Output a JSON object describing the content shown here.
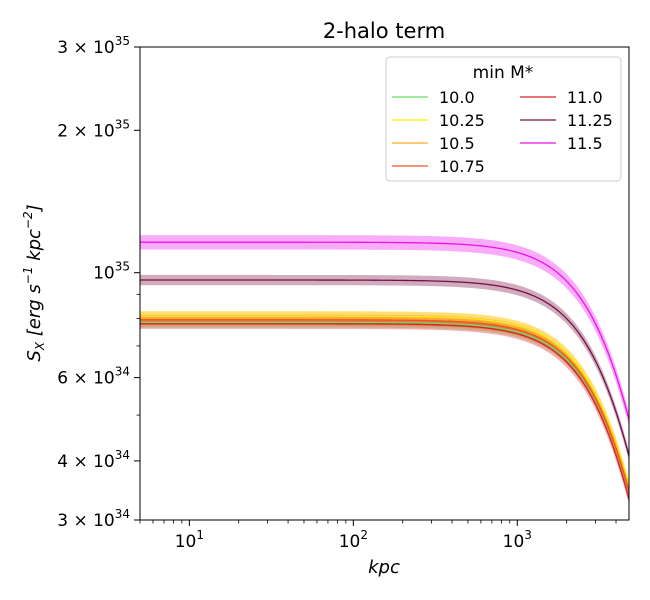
{
  "chart_data": {
    "type": "line",
    "title": "2-halo term",
    "xlabel": "kpc",
    "ylabel": "S_X [erg s^-1 kpc^-2]",
    "ylabel_parts": {
      "sym": "S",
      "sub": "X",
      "unit_a": "[erg s",
      "exp_a": "−1",
      "unit_b": " kpc",
      "exp_b": "−2",
      "unit_c": "]"
    },
    "xscale": "log",
    "yscale": "log",
    "xlim": [
      5,
      4800
    ],
    "ylim": [
      3e+34,
      3e+35
    ],
    "x_ticks": [
      {
        "value": 10,
        "base": "10",
        "exp": "1"
      },
      {
        "value": 100,
        "base": "10",
        "exp": "2"
      },
      {
        "value": 1000,
        "base": "10",
        "exp": "3"
      }
    ],
    "y_ticks": [
      {
        "value": 3e+34,
        "base": "3 × 10",
        "exp": "34"
      },
      {
        "value": 4e+34,
        "base": "4 × 10",
        "exp": "34"
      },
      {
        "value": 6e+34,
        "base": "6 × 10",
        "exp": "34"
      },
      {
        "value": 1e+35,
        "base": "10",
        "exp": "35"
      },
      {
        "value": 2e+35,
        "base": "2 × 10",
        "exp": "35"
      },
      {
        "value": 3e+35,
        "base": "3 × 10",
        "exp": "35"
      }
    ],
    "legend": {
      "title": "min M*",
      "location": "upper right",
      "columns": 2
    },
    "series": [
      {
        "name": "10.0",
        "color": "#66dd66",
        "flat": 7.85e+34,
        "end": 3.45e+34,
        "band": 0.025
      },
      {
        "name": "10.25",
        "color": "#ffee00",
        "flat": 8.1e+34,
        "end": 3.55e+34,
        "band": 0.025
      },
      {
        "name": "10.5",
        "color": "#ffaa22",
        "flat": 8e+34,
        "end": 3.5e+34,
        "band": 0.035
      },
      {
        "name": "10.75",
        "color": "#ee5522",
        "flat": 7.95e+34,
        "end": 3.45e+34,
        "band": 0.025
      },
      {
        "name": "11.0",
        "color": "#dd2222",
        "flat": 7.8e+34,
        "end": 3.32e+34,
        "band": 0.025
      },
      {
        "name": "11.25",
        "color": "#771144",
        "flat": 9.65e+34,
        "end": 4.1e+34,
        "band": 0.025
      },
      {
        "name": "11.5",
        "color": "#ee11ee",
        "flat": 1.16e+35,
        "end": 4.9e+34,
        "band": 0.035
      }
    ]
  }
}
